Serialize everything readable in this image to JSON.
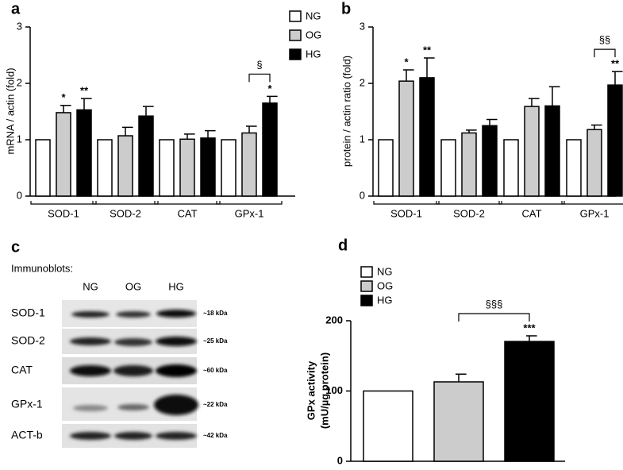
{
  "chart_data": [
    {
      "type": "bar",
      "panel_label": "a",
      "ylabel": "mRNA / actin (fold)",
      "categories": [
        "SOD-1",
        "SOD-2",
        "CAT",
        "GPx-1"
      ],
      "series": [
        {
          "name": "NG",
          "color": "#ffffff",
          "values": [
            1,
            1,
            1,
            1
          ]
        },
        {
          "name": "OG",
          "color": "#cccccc",
          "values": [
            1.48,
            1.07,
            1.01,
            1.12
          ],
          "errors": [
            0.13,
            0.15,
            0.09,
            0.12
          ]
        },
        {
          "name": "HG",
          "color": "#000000",
          "values": [
            1.53,
            1.42,
            1.03,
            1.65
          ],
          "errors": [
            0.2,
            0.17,
            0.13,
            0.12
          ]
        }
      ],
      "ylim": [
        0,
        3
      ],
      "yticks": [
        0,
        1,
        2,
        3
      ],
      "annotations": [
        {
          "text": "*",
          "series": "OG",
          "category": "SOD-1"
        },
        {
          "text": "**",
          "series": "HG",
          "category": "SOD-1"
        },
        {
          "text": "*",
          "series": "HG",
          "category": "GPx-1"
        }
      ],
      "brackets": [
        {
          "text": "§",
          "from": "OG",
          "to": "HG",
          "category": "GPx-1"
        }
      ]
    },
    {
      "type": "bar",
      "panel_label": "b",
      "ylabel": "protein / actin ratio (fold)",
      "categories": [
        "SOD-1",
        "SOD-2",
        "CAT",
        "GPx-1"
      ],
      "series": [
        {
          "color": "#ffffff",
          "values": [
            1,
            1,
            1,
            1
          ]
        },
        {
          "color": "#cccccc",
          "values": [
            2.04,
            1.12,
            1.59,
            1.18
          ],
          "errors": [
            0.2,
            0.05,
            0.14,
            0.08
          ]
        },
        {
          "color": "#000000",
          "values": [
            2.1,
            1.25,
            1.6,
            1.97
          ],
          "errors": [
            0.35,
            0.11,
            0.34,
            0.24
          ]
        }
      ],
      "ylim": [
        0,
        3
      ],
      "yticks": [
        0,
        1,
        2,
        3
      ],
      "annotations": [
        {
          "text": "*",
          "series": 1,
          "category": "SOD-1"
        },
        {
          "text": "**",
          "series": 2,
          "category": "SOD-1"
        },
        {
          "text": "**",
          "series": 2,
          "category": "GPx-1"
        }
      ],
      "brackets": [
        {
          "text": "§§",
          "from": 1,
          "to": 2,
          "category": "GPx-1"
        }
      ]
    },
    {
      "type": "bar",
      "panel_label": "d",
      "ylabel": [
        "GPx activity",
        "(mU/µg protein)"
      ],
      "series": [
        {
          "name": "NG",
          "color": "#ffffff",
          "values": [
            100
          ]
        },
        {
          "name": "OG",
          "color": "#cccccc",
          "values": [
            113
          ],
          "errors": [
            11
          ]
        },
        {
          "name": "HG",
          "color": "#000000",
          "values": [
            170.5
          ],
          "errors": [
            8
          ]
        }
      ],
      "ylim": [
        0,
        200
      ],
      "yticks": [
        0,
        100,
        200
      ],
      "annotations": [
        {
          "text": "***",
          "series": "HG"
        }
      ],
      "brackets": [
        {
          "text": "§§§",
          "from": "OG",
          "to": "HG"
        }
      ]
    }
  ],
  "blot": {
    "panel_label": "c",
    "title": "Immunoblots:",
    "lanes": [
      "NG",
      "OG",
      "HG"
    ],
    "rows": [
      {
        "name": "SOD-1",
        "size": "~18 kDa"
      },
      {
        "name": "SOD-2",
        "size": "~25 kDa"
      },
      {
        "name": "CAT",
        "size": "~60 kDa"
      },
      {
        "name": "GPx-1",
        "size": "~22 kDa"
      },
      {
        "name": "ACT-b",
        "size": "~42 kDa"
      }
    ]
  }
}
